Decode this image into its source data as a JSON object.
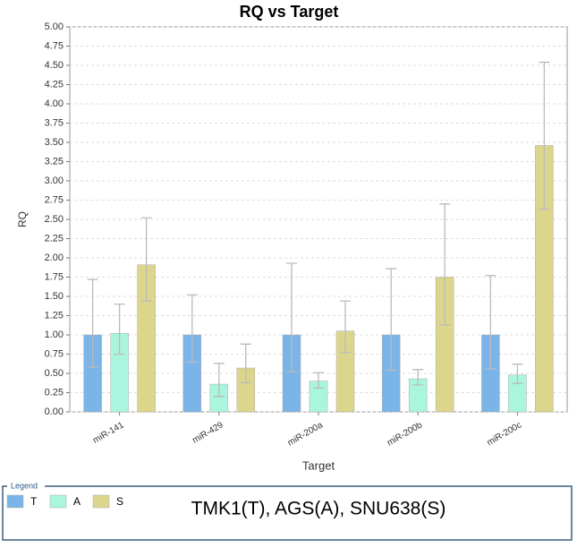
{
  "chart_data": {
    "type": "bar",
    "title": "RQ vs Target",
    "x_label": "Target",
    "y_label": "RQ",
    "categories": [
      "miR-141",
      "miR-429",
      "miR-200a",
      "miR-200b",
      "miR-200c"
    ],
    "series": [
      {
        "name": "T",
        "color": "#7ab4e8",
        "values": [
          1.0,
          1.0,
          1.0,
          1.0,
          1.0
        ],
        "lower": [
          0.58,
          0.65,
          0.52,
          0.54,
          0.56
        ],
        "upper": [
          1.72,
          1.52,
          1.93,
          1.86,
          1.77
        ]
      },
      {
        "name": "A",
        "color": "#aaf5dd",
        "values": [
          1.02,
          0.36,
          0.4,
          0.43,
          0.48
        ],
        "lower": [
          0.75,
          0.2,
          0.31,
          0.35,
          0.37
        ],
        "upper": [
          1.4,
          0.63,
          0.51,
          0.55,
          0.62
        ]
      },
      {
        "name": "S",
        "color": "#dcd68c",
        "values": [
          1.91,
          0.57,
          1.05,
          1.75,
          3.46
        ],
        "lower": [
          1.44,
          0.38,
          0.77,
          1.13,
          2.63
        ],
        "upper": [
          2.52,
          0.88,
          1.44,
          2.7,
          4.54
        ]
      }
    ],
    "ylim": [
      0,
      5
    ],
    "yticks": [
      {
        "value": 0,
        "label": "0.00"
      },
      {
        "value": 0.25,
        "label": "0.25"
      },
      {
        "value": 0.5,
        "label": "0.50"
      },
      {
        "value": 0.75,
        "label": "0.75"
      },
      {
        "value": 1,
        "label": "1.00"
      },
      {
        "value": 1.25,
        "label": "1.25"
      },
      {
        "value": 1.5,
        "label": "1.50"
      },
      {
        "value": 1.75,
        "label": "1.75"
      },
      {
        "value": 2,
        "label": "2.00"
      },
      {
        "value": 2.25,
        "label": "2.25"
      },
      {
        "value": 2.5,
        "label": "2.50"
      },
      {
        "value": 2.75,
        "label": "2.75"
      },
      {
        "value": 3,
        "label": "3.00"
      },
      {
        "value": 3.25,
        "label": "3.25"
      },
      {
        "value": 3.5,
        "label": "3.50"
      },
      {
        "value": 3.75,
        "label": "3.75"
      },
      {
        "value": 4,
        "label": "4.00"
      },
      {
        "value": 4.25,
        "label": "4.25"
      },
      {
        "value": 4.5,
        "label": "4.50"
      },
      {
        "value": 4.75,
        "label": "4.75"
      },
      {
        "value": 5,
        "label": "5.00"
      }
    ],
    "grid": true,
    "legend": {
      "title": "Legend",
      "note": "TMK1(T), AGS(A), SNU638(S)"
    }
  }
}
